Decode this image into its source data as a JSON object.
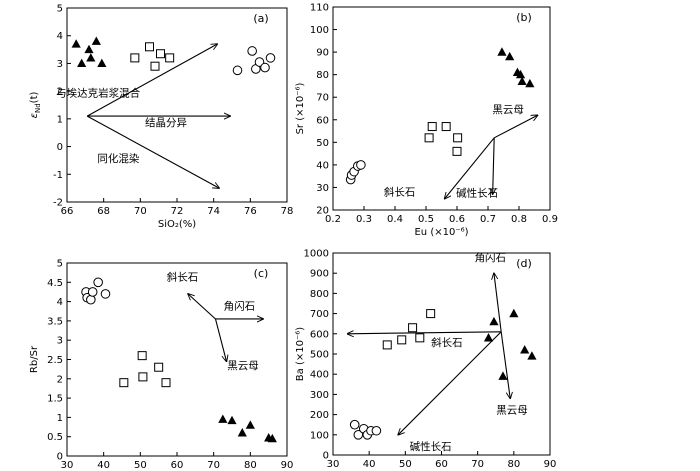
{
  "chart_data": [
    {
      "type": "scatter",
      "panel": "(a)",
      "xlabel": "SiO₂(%)",
      "ylabel": "εNd(t)",
      "ylabel_main": "ε",
      "ylabel_sub": "Nd",
      "ylabel_tail": "(t)",
      "xlim": [
        66,
        78
      ],
      "ylim": [
        -2,
        5
      ],
      "xticks": [
        66,
        68,
        70,
        72,
        74,
        76,
        78
      ],
      "yticks": [
        -2,
        -1,
        0,
        1,
        2,
        3,
        4,
        5
      ],
      "series": [
        {
          "name": "triangle",
          "marker": "triangle",
          "points": [
            [
              66.5,
              3.7
            ],
            [
              66.8,
              3.0
            ],
            [
              67.2,
              3.5
            ],
            [
              67.6,
              3.8
            ],
            [
              67.9,
              3.0
            ],
            [
              67.3,
              3.2
            ]
          ]
        },
        {
          "name": "square",
          "marker": "square",
          "points": [
            [
              69.7,
              3.2
            ],
            [
              70.5,
              3.6
            ],
            [
              70.8,
              2.9
            ],
            [
              71.1,
              3.35
            ],
            [
              71.6,
              3.2
            ]
          ]
        },
        {
          "name": "circle",
          "marker": "circle",
          "points": [
            [
              75.3,
              2.75
            ],
            [
              76.1,
              3.45
            ],
            [
              76.3,
              2.8
            ],
            [
              76.5,
              3.05
            ],
            [
              76.8,
              2.85
            ],
            [
              77.1,
              3.2
            ]
          ]
        }
      ],
      "arrows": [
        {
          "from": [
            67.1,
            1.1
          ],
          "to": [
            74.2,
            3.7
          ]
        },
        {
          "from": [
            67.1,
            1.1
          ],
          "to": [
            74.9,
            1.1
          ]
        },
        {
          "from": [
            67.1,
            1.1
          ],
          "to": [
            74.3,
            -1.5
          ]
        }
      ],
      "annotations": [
        {
          "text": "与埃达克岩浆混合",
          "at": [
            67.7,
            1.8
          ]
        },
        {
          "text": "结晶分异",
          "at": [
            71.4,
            0.75
          ]
        },
        {
          "text": "同化混染",
          "at": [
            68.8,
            -0.55
          ]
        }
      ]
    },
    {
      "type": "scatter",
      "panel": "(b)",
      "xlabel": "Eu (×10⁻⁶)",
      "ylabel": "Sr (×10⁻⁶)",
      "xlim": [
        0.2,
        0.9
      ],
      "ylim": [
        20,
        110
      ],
      "xticks": [
        0.2,
        0.3,
        0.4,
        0.5,
        0.6,
        0.7,
        0.8,
        0.9
      ],
      "yticks": [
        20,
        30,
        40,
        50,
        60,
        70,
        80,
        90,
        100,
        110
      ],
      "series": [
        {
          "name": "circle",
          "marker": "circle",
          "points": [
            [
              0.257,
              33.5
            ],
            [
              0.26,
              35.5
            ],
            [
              0.268,
              37
            ],
            [
              0.28,
              39.5
            ],
            [
              0.29,
              40
            ]
          ]
        },
        {
          "name": "square",
          "marker": "square",
          "points": [
            [
              0.51,
              52
            ],
            [
              0.52,
              57
            ],
            [
              0.565,
              57
            ],
            [
              0.6,
              46
            ],
            [
              0.602,
              52
            ]
          ]
        },
        {
          "name": "triangle",
          "marker": "triangle",
          "points": [
            [
              0.745,
              90
            ],
            [
              0.77,
              88
            ],
            [
              0.795,
              81
            ],
            [
              0.805,
              80
            ],
            [
              0.81,
              77
            ],
            [
              0.835,
              76
            ]
          ]
        }
      ],
      "arrows": [
        {
          "from": [
            0.72,
            52
          ],
          "to": [
            0.86,
            62
          ]
        },
        {
          "from": [
            0.72,
            52
          ],
          "to": [
            0.56,
            25
          ]
        },
        {
          "from": [
            0.72,
            52
          ],
          "to": [
            0.715,
            27
          ]
        }
      ],
      "annotations": [
        {
          "text": "黑云母",
          "at": [
            0.765,
            63
          ]
        },
        {
          "text": "斜长石",
          "at": [
            0.415,
            26.5
          ]
        },
        {
          "text": "碱性长石",
          "at": [
            0.665,
            26
          ]
        }
      ]
    },
    {
      "type": "scatter",
      "panel": "(c)",
      "xlabel": "Sr (×10⁻⁶)",
      "ylabel": "Rb/Sr",
      "xlim": [
        30,
        90
      ],
      "ylim": [
        0,
        5
      ],
      "xticks": [
        30,
        40,
        50,
        60,
        70,
        80,
        90
      ],
      "yticks": [
        0,
        0.5,
        1,
        1.5,
        2,
        2.5,
        3,
        3.5,
        4,
        4.5,
        5
      ],
      "series": [
        {
          "name": "circle",
          "marker": "circle",
          "points": [
            [
              35.2,
              4.25
            ],
            [
              35.5,
              4.1
            ],
            [
              36.5,
              4.05
            ],
            [
              37,
              4.25
            ],
            [
              38.5,
              4.5
            ],
            [
              40.5,
              4.2
            ]
          ]
        },
        {
          "name": "square",
          "marker": "square",
          "points": [
            [
              45.5,
              1.9
            ],
            [
              50.5,
              2.6
            ],
            [
              50.7,
              2.05
            ],
            [
              55,
              2.3
            ],
            [
              57,
              1.9
            ]
          ]
        },
        {
          "name": "triangle",
          "marker": "triangle",
          "points": [
            [
              72.5,
              0.95
            ],
            [
              75,
              0.92
            ],
            [
              77.8,
              0.6
            ],
            [
              80,
              0.8
            ],
            [
              85,
              0.47
            ],
            [
              86,
              0.45
            ]
          ]
        }
      ],
      "arrows": [
        {
          "from": [
            70.5,
            3.55
          ],
          "to": [
            63,
            4.2
          ]
        },
        {
          "from": [
            70.5,
            3.55
          ],
          "to": [
            83.5,
            3.55
          ]
        },
        {
          "from": [
            70.5,
            3.55
          ],
          "to": [
            73.5,
            2.45
          ]
        }
      ],
      "annotations": [
        {
          "text": "斜长石",
          "at": [
            61.5,
            4.55
          ]
        },
        {
          "text": "角闪石",
          "at": [
            77,
            3.8
          ]
        },
        {
          "text": "黑云母",
          "at": [
            78,
            2.25
          ]
        }
      ]
    },
    {
      "type": "scatter",
      "panel": "(d)",
      "xlabel": "Sr (×10⁻⁶)",
      "ylabel": "Ba (×10⁻⁶)",
      "xlim": [
        30,
        90
      ],
      "ylim": [
        0,
        1000
      ],
      "xticks": [
        30,
        40,
        50,
        60,
        70,
        80,
        90
      ],
      "yticks": [
        0,
        100,
        200,
        300,
        400,
        500,
        600,
        700,
        800,
        900,
        1000
      ],
      "series": [
        {
          "name": "circle",
          "marker": "circle",
          "points": [
            [
              36,
              150
            ],
            [
              37,
              100
            ],
            [
              38.5,
              130
            ],
            [
              39.5,
              100
            ],
            [
              40.5,
              120
            ],
            [
              42,
              120
            ]
          ]
        },
        {
          "name": "square",
          "marker": "square",
          "points": [
            [
              45,
              545
            ],
            [
              49,
              570
            ],
            [
              52,
              630
            ],
            [
              54,
              580
            ],
            [
              57,
              700
            ]
          ]
        },
        {
          "name": "triangle",
          "marker": "triangle",
          "points": [
            [
              73,
              580
            ],
            [
              74.5,
              660
            ],
            [
              77,
              390
            ],
            [
              80,
              700
            ],
            [
              83,
              520
            ],
            [
              85,
              490
            ]
          ]
        }
      ],
      "arrows": [
        {
          "from": [
            76.5,
            610
          ],
          "to": [
            74.5,
            900
          ]
        },
        {
          "from": [
            76.5,
            610
          ],
          "to": [
            34,
            600
          ]
        },
        {
          "from": [
            76.5,
            610
          ],
          "to": [
            79,
            280
          ]
        },
        {
          "from": [
            76.5,
            610
          ],
          "to": [
            48,
            100
          ]
        }
      ],
      "annotations": [
        {
          "text": "角闪石",
          "at": [
            73.5,
            960
          ]
        },
        {
          "text": "斜长石",
          "at": [
            61.5,
            540
          ]
        },
        {
          "text": "黑云母",
          "at": [
            79.5,
            205
          ]
        },
        {
          "text": "碱性长石",
          "at": [
            57,
            25
          ]
        }
      ]
    }
  ]
}
